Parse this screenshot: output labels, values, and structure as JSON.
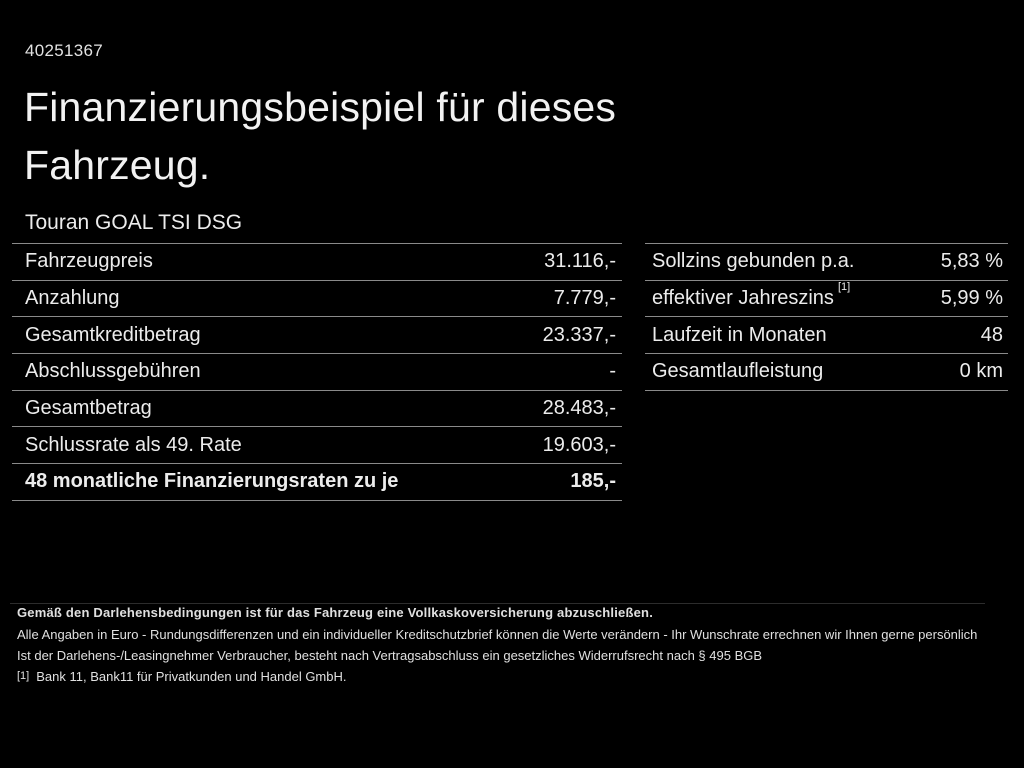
{
  "page": {
    "vehicle_id": "40251367",
    "title_line1": "Finanzierungsbeispiel für dieses",
    "title_line2": "Fahrzeug.",
    "model": "Touran GOAL TSI DSG"
  },
  "left_table": {
    "rows": [
      {
        "label": "Fahrzeugpreis",
        "value": "31.116,-"
      },
      {
        "label": "Anzahlung",
        "value": "7.779,-"
      },
      {
        "label": "Gesamtkreditbetrag",
        "value": "23.337,-"
      },
      {
        "label": "Abschlussgebühren",
        "value": "-"
      },
      {
        "label": "Gesamtbetrag",
        "value": "28.483,-"
      },
      {
        "label": "Schlussrate als 49. Rate",
        "value": "19.603,-"
      },
      {
        "label": "48 monatliche Finanzierungsraten zu je",
        "value": "185,-"
      }
    ]
  },
  "right_table": {
    "rows": [
      {
        "label": "Sollzins gebunden p.a.",
        "value": "5,83 %"
      },
      {
        "label": "effektiver Jahreszins",
        "sup": "[1]",
        "value": "5,99 %"
      },
      {
        "label": "Laufzeit in Monaten",
        "value": "48"
      },
      {
        "label": "Gesamtlaufleistung",
        "value": "0 km"
      }
    ]
  },
  "footer": {
    "line_bold": "Gemäß den Darlehensbedingungen ist für das Fahrzeug eine Vollkaskoversicherung abzuschließen.",
    "line2": "Alle Angaben in Euro - Rundungsdifferenzen und ein individueller Kreditschutzbrief können die Werte verändern - Ihr Wunschrate errechnen wir Ihnen gerne persönlich",
    "line3": "Ist der Darlehens-/Leasingnehmer Verbraucher, besteht nach Vertragsabschluss ein gesetzliches Widerrufsrecht nach § 495 BGB",
    "footnote_marker": "[1]",
    "footnote_text": "Bank 11, Bank11 für Privatkunden und Handel GmbH."
  },
  "colors": {
    "background": "#000000",
    "text": "#ececec",
    "divider": "#8a8a8a"
  }
}
